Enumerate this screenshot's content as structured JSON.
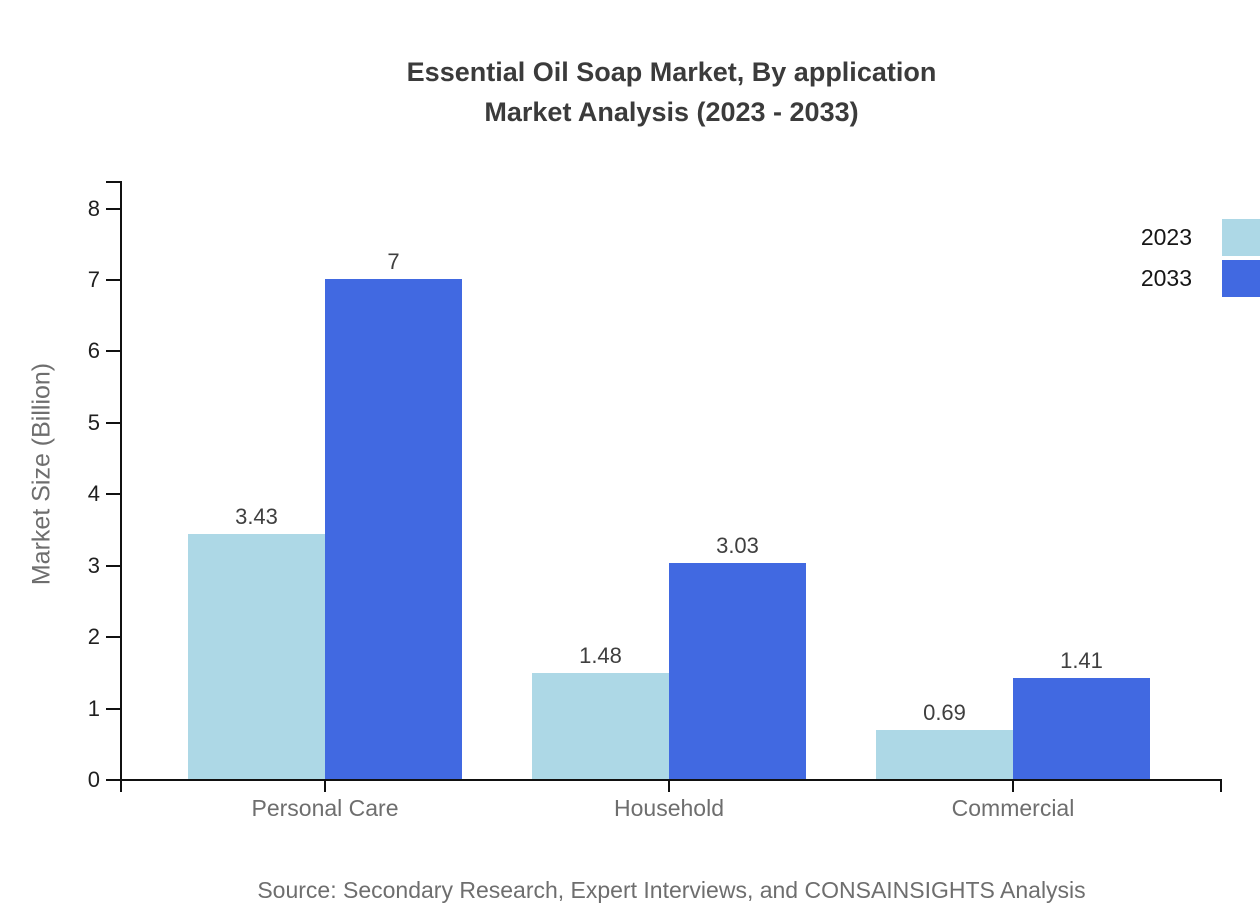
{
  "chart_data": {
    "type": "bar",
    "title": "Essential Oil Soap Market, By application",
    "subtitle": "Market Analysis (2023 - 2033)",
    "xlabel": "",
    "ylabel": "Market Size (Billion)",
    "categories": [
      "Personal Care",
      "Household",
      "Commercial"
    ],
    "series": [
      {
        "name": "2023",
        "color": "#ADD8E6",
        "values": [
          3.43,
          1.48,
          0.69
        ],
        "labels": [
          "3.43",
          "1.48",
          "0.69"
        ]
      },
      {
        "name": "2033",
        "color": "#4169E1",
        "values": [
          7,
          3.03,
          1.41
        ],
        "labels": [
          "7",
          "3.03",
          "1.41"
        ]
      }
    ],
    "ylim": [
      0,
      8.4
    ],
    "yticks": [
      0,
      1,
      2,
      3,
      4,
      5,
      6,
      7,
      8
    ],
    "grid": false,
    "legend_position": "top-right",
    "source": "Source: Secondary Research, Expert Interviews, and CONSAINSIGHTS Analysis"
  },
  "colors": {
    "series_2023": "#ADD8E6",
    "series_2033": "#4169E1",
    "axis": "#111111",
    "title_text": "#3b3b3b",
    "muted_text": "#6e6e6e",
    "tick_text": "#1f1f1f",
    "value_text": "#3f3f3f",
    "background": "#ffffff"
  }
}
